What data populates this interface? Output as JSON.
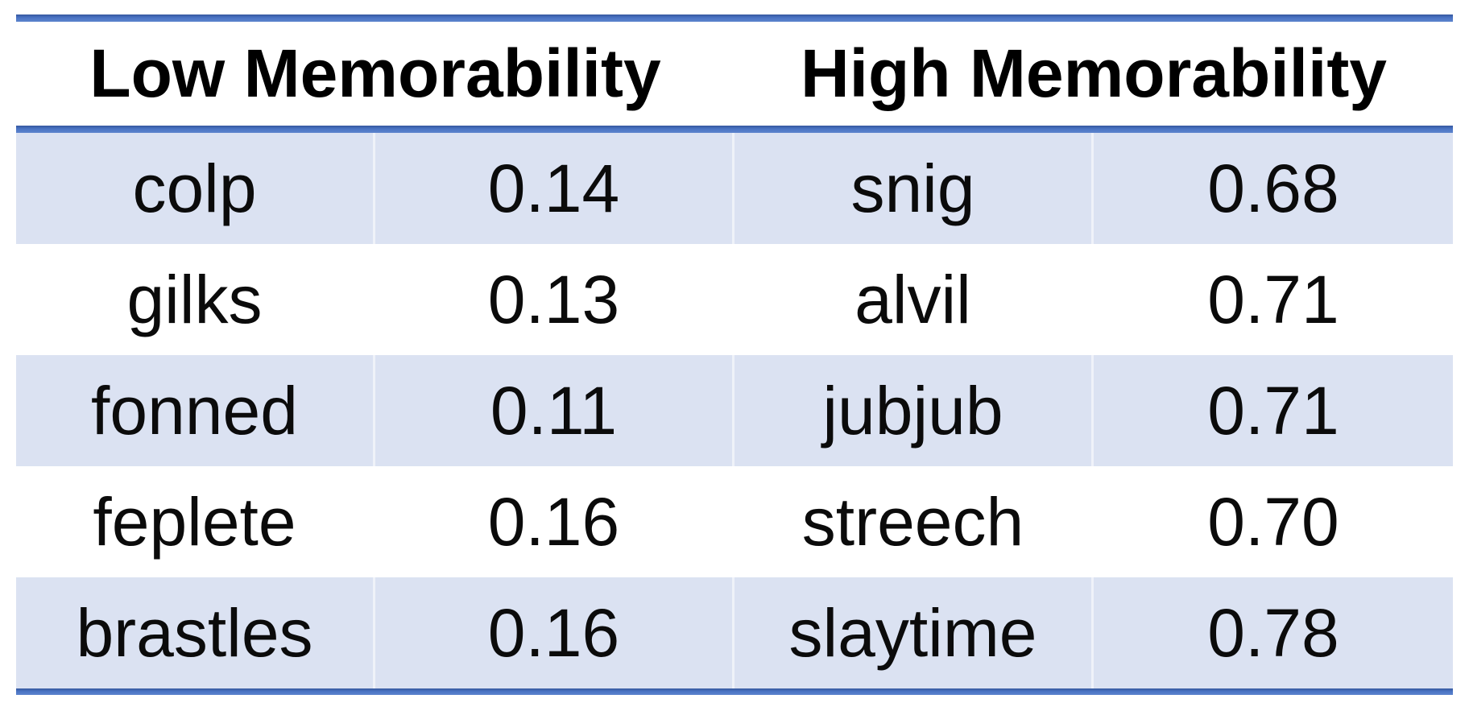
{
  "page": {
    "background": "#ffffff"
  },
  "colors": {
    "rule_blue": "#4a74c4",
    "row_shade": "#dbe2f2",
    "text": "#0b0b0b"
  },
  "table": {
    "headers": [
      {
        "label": "Low Memorability"
      },
      {
        "label": "High Memorability"
      }
    ],
    "rows": [
      {
        "low_word": "colp",
        "low_score": "0.14",
        "high_word": "snig",
        "high_score": "0.68"
      },
      {
        "low_word": "gilks",
        "low_score": "0.13",
        "high_word": "alvil",
        "high_score": "0.71"
      },
      {
        "low_word": "fonned",
        "low_score": "0.11",
        "high_word": "jubjub",
        "high_score": "0.71"
      },
      {
        "low_word": "feplete",
        "low_score": "0.16",
        "high_word": "streech",
        "high_score": "0.70"
      },
      {
        "low_word": "brastles",
        "low_score": "0.16",
        "high_word": "slaytime",
        "high_score": "0.78"
      }
    ]
  }
}
